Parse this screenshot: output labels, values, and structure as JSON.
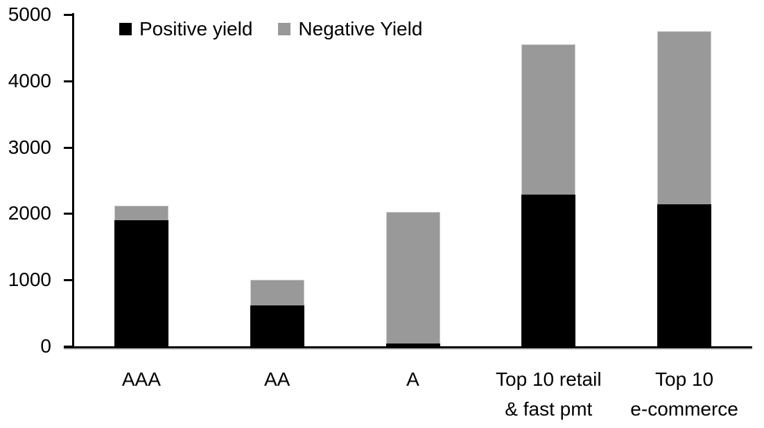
{
  "chart_data": {
    "type": "bar",
    "stacked": true,
    "title": "",
    "xlabel": "",
    "ylabel": "",
    "categories": [
      "AAA",
      "AA",
      "A",
      "Top 10 retail\n& fast pmt",
      "Top 10\ne-commerce"
    ],
    "series": [
      {
        "name": "Positive yield",
        "color": "#000000",
        "values": [
          1900,
          620,
          40,
          2290,
          2140
        ]
      },
      {
        "name": "Negative Yield",
        "color": "#999999",
        "values": [
          220,
          380,
          1990,
          2260,
          2610
        ]
      }
    ],
    "totals": [
      2120,
      1000,
      2030,
      4550,
      4750
    ],
    "ylim": [
      0,
      5000
    ],
    "yticks": [
      "0",
      "1000",
      "2000",
      "3000",
      "4000",
      "5000"
    ],
    "grid": false,
    "legend_position": "top",
    "axis_color": "#000000",
    "background_color": "#ffffff"
  }
}
